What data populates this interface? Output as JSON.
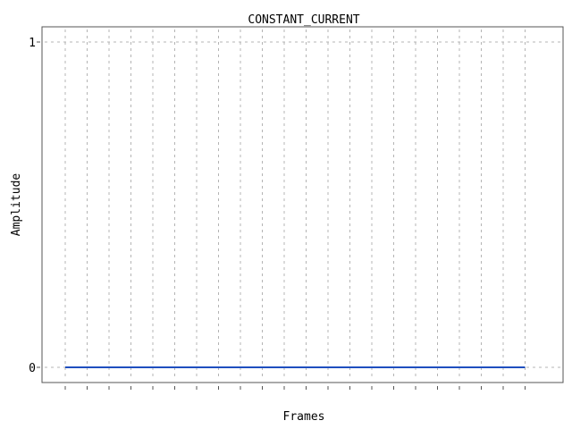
{
  "chart_data": {
    "type": "line",
    "title": "CONSTANT_CURRENT",
    "xlabel": "Frames",
    "ylabel": "Amplitude",
    "ylim": [
      0,
      1
    ],
    "y_ticks": [
      "0",
      "1"
    ],
    "x_tick_count": 22,
    "grid": true,
    "series": [
      {
        "color": "#1f4fbf",
        "x": [
          0,
          21
        ],
        "y": [
          0,
          0
        ]
      }
    ],
    "colors": {
      "line": "#1f4fbf",
      "grid": "#b4b4b4",
      "axis": "#555555"
    }
  }
}
